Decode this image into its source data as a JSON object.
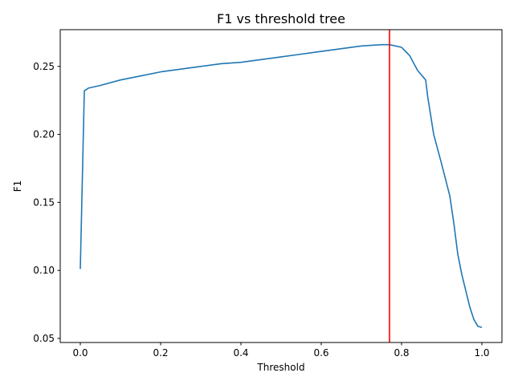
{
  "chart_data": {
    "type": "line",
    "title": "F1 vs threshold tree",
    "xlabel": "Threshold",
    "ylabel": "F1",
    "xlim": [
      -0.05,
      1.05
    ],
    "ylim": [
      0.047,
      0.277
    ],
    "xticks": [
      0.0,
      0.2,
      0.4,
      0.6,
      0.8,
      1.0
    ],
    "xtick_labels": [
      "0.0",
      "0.2",
      "0.4",
      "0.6",
      "0.8",
      "1.0"
    ],
    "yticks": [
      0.05,
      0.1,
      0.15,
      0.2,
      0.25
    ],
    "ytick_labels": [
      "0.05",
      "0.10",
      "0.15",
      "0.20",
      "0.25"
    ],
    "grid": false,
    "legend": "none",
    "series": [
      {
        "color": "#1f77b4",
        "x": [
          0.0,
          0.01,
          0.02,
          0.05,
          0.1,
          0.15,
          0.2,
          0.25,
          0.3,
          0.35,
          0.4,
          0.45,
          0.5,
          0.55,
          0.6,
          0.65,
          0.7,
          0.75,
          0.77,
          0.8,
          0.82,
          0.84,
          0.86,
          0.865,
          0.88,
          0.9,
          0.92,
          0.93,
          0.94,
          0.95,
          0.97,
          0.98,
          0.99,
          1.0
        ],
        "y": [
          0.101,
          0.232,
          0.234,
          0.236,
          0.24,
          0.243,
          0.246,
          0.248,
          0.25,
          0.252,
          0.253,
          0.255,
          0.257,
          0.259,
          0.261,
          0.263,
          0.265,
          0.266,
          0.266,
          0.264,
          0.258,
          0.247,
          0.24,
          0.228,
          0.2,
          0.178,
          0.155,
          0.135,
          0.112,
          0.097,
          0.073,
          0.064,
          0.059,
          0.058
        ]
      }
    ],
    "vlines": [
      {
        "x": 0.77,
        "color": "#ff0000"
      }
    ]
  }
}
